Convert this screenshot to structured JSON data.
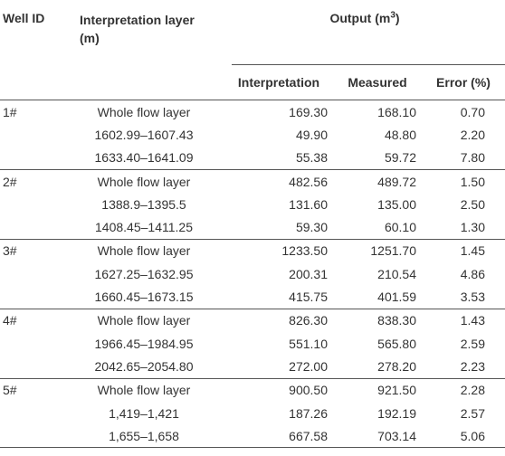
{
  "table": {
    "headers": {
      "well_id": "Well ID",
      "layer_line1": "Interpretation layer",
      "layer_line2": "(m)",
      "output_prefix": "Output (m",
      "output_sup": "3",
      "output_suffix": ")",
      "interpretation": "Interpretation",
      "measured": "Measured",
      "error": "Error (%)"
    },
    "rows": [
      {
        "well": "1#",
        "layer": "Whole flow layer",
        "interp": "169.30",
        "meas": "168.10",
        "err": "0.70"
      },
      {
        "well": "",
        "layer": "1602.99–1607.43",
        "interp": "49.90",
        "meas": "48.80",
        "err": "2.20"
      },
      {
        "well": "",
        "layer": "1633.40–1641.09",
        "interp": "55.38",
        "meas": "59.72",
        "err": "7.80"
      },
      {
        "well": "2#",
        "layer": "Whole flow layer",
        "interp": "482.56",
        "meas": "489.72",
        "err": "1.50"
      },
      {
        "well": "",
        "layer": "1388.9–1395.5",
        "interp": "131.60",
        "meas": "135.00",
        "err": "2.50"
      },
      {
        "well": "",
        "layer": "1408.45–1411.25",
        "interp": "59.30",
        "meas": "60.10",
        "err": "1.30"
      },
      {
        "well": "3#",
        "layer": "Whole flow layer",
        "interp": "1233.50",
        "meas": "1251.70",
        "err": "1.45"
      },
      {
        "well": "",
        "layer": "1627.25–1632.95",
        "interp": "200.31",
        "meas": "210.54",
        "err": "4.86"
      },
      {
        "well": "",
        "layer": "1660.45–1673.15",
        "interp": "415.75",
        "meas": "401.59",
        "err": "3.53"
      },
      {
        "well": "4#",
        "layer": "Whole flow layer",
        "interp": "826.30",
        "meas": "838.30",
        "err": "1.43"
      },
      {
        "well": "",
        "layer": "1966.45–1984.95",
        "interp": "551.10",
        "meas": "565.80",
        "err": "2.59"
      },
      {
        "well": "",
        "layer": "2042.65–2054.80",
        "interp": "272.00",
        "meas": "278.20",
        "err": "2.23"
      },
      {
        "well": "5#",
        "layer": "Whole flow layer",
        "interp": "900.50",
        "meas": "921.50",
        "err": "2.28"
      },
      {
        "well": "",
        "layer": "1,419–1,421",
        "interp": "187.26",
        "meas": "192.19",
        "err": "2.57"
      },
      {
        "well": "",
        "layer": "1,655–1,658",
        "interp": "667.58",
        "meas": "703.14",
        "err": "5.06"
      }
    ]
  }
}
